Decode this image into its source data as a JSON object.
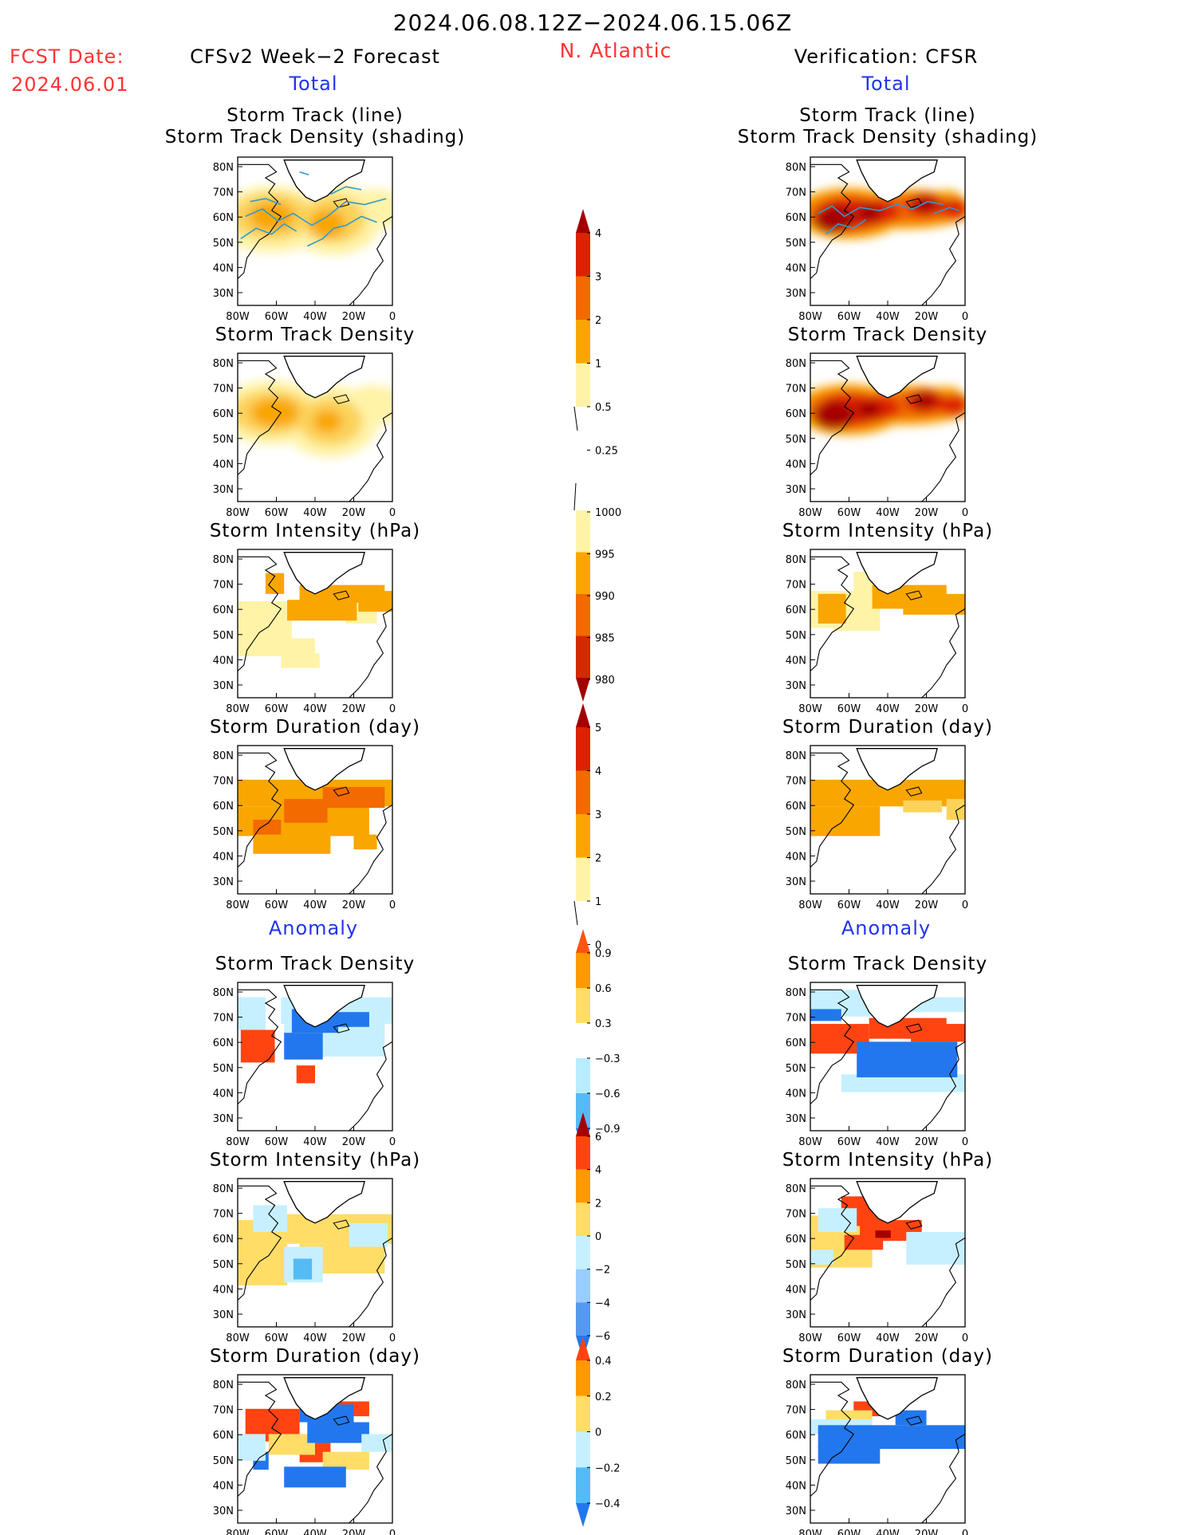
{
  "header": {
    "title": "2024.06.08.12Z−2024.06.15.06Z",
    "region": "N. Atlantic",
    "fcst_label": "FCST Date:",
    "fcst_date": "2024.06.01",
    "left_heading": "CFSv2 Week−2 Forecast",
    "right_heading": "Verification: CFSR",
    "total_label": "Total",
    "anomaly_label": "Anomaly"
  },
  "colors": {
    "red_text": "#ff3333",
    "blue_text": "#2233ee",
    "track_line": "#3399cc",
    "coast": "#000000"
  },
  "chart_data": {
    "type": "heatmap",
    "map_axes": {
      "x_ticks": [
        "80W",
        "60W",
        "40W",
        "20W",
        "0"
      ],
      "y_ticks": [
        "80N",
        "70N",
        "60N",
        "50N",
        "40N",
        "30N"
      ],
      "xlim": [
        -80,
        0
      ],
      "ylim": [
        25,
        85
      ]
    },
    "panels": [
      {
        "id": "tot-track",
        "title": [
          "Storm Track (line)",
          "Storm Track Density (shading)"
        ]
      },
      {
        "id": "tot-density",
        "title": [
          "Storm Track Density"
        ]
      },
      {
        "id": "tot-intensity",
        "title": [
          "Storm Intensity (hPa)"
        ]
      },
      {
        "id": "tot-duration",
        "title": [
          "Storm Duration (day)"
        ]
      },
      {
        "id": "anom-density",
        "title": [
          "Storm Track Density"
        ]
      },
      {
        "id": "anom-intensity",
        "title": [
          "Storm Intensity (hPa)"
        ]
      },
      {
        "id": "anom-duration",
        "title": [
          "Storm Duration (day)"
        ]
      }
    ],
    "colorbars": [
      {
        "id": "density",
        "labels": [
          "4",
          "3",
          "2",
          "1",
          "0.5",
          "0.25"
        ],
        "colors": [
          "#a50000",
          "#dd2200",
          "#f26a00",
          "#f9a600",
          "#fcd25a",
          "#fff3a8"
        ]
      },
      {
        "id": "intensity",
        "labels": [
          "1000",
          "995",
          "990",
          "985",
          "980"
        ],
        "colors": [
          "#fff3a8",
          "#f9a600",
          "#f26a00",
          "#d42a00",
          "#a50000"
        ]
      },
      {
        "id": "duration",
        "labels": [
          "5",
          "4",
          "3",
          "2",
          "1",
          "0"
        ],
        "colors": [
          "#a50000",
          "#dd2200",
          "#f26a00",
          "#f9a600",
          "#fcd25a",
          "#fff3a8"
        ]
      },
      {
        "id": "anom-density",
        "labels": [
          "0.9",
          "0.6",
          "0.3",
          "−0.3",
          "−0.6",
          "−0.9"
        ],
        "colors": [
          "#ff5511",
          "#ff9900",
          "#ffdd66",
          "#ffffff",
          "#b9ecff",
          "#55bbf5",
          "#2277ee"
        ]
      },
      {
        "id": "anom-intensity",
        "labels": [
          "6",
          "4",
          "2",
          "0",
          "−2",
          "−4",
          "−6"
        ],
        "colors": [
          "#a50000",
          "#ff4411",
          "#ff9900",
          "#ffdd66",
          "#c6f0ff",
          "#99ccff",
          "#5599ee",
          "#2277ee"
        ]
      },
      {
        "id": "anom-duration",
        "labels": [
          "0.4",
          "0.2",
          "0",
          "−0.2",
          "−0.4"
        ],
        "colors": [
          "#ff4411",
          "#ff9900",
          "#ffdd66",
          "#c6f0ff",
          "#55bbf5",
          "#2277ee"
        ]
      }
    ]
  }
}
